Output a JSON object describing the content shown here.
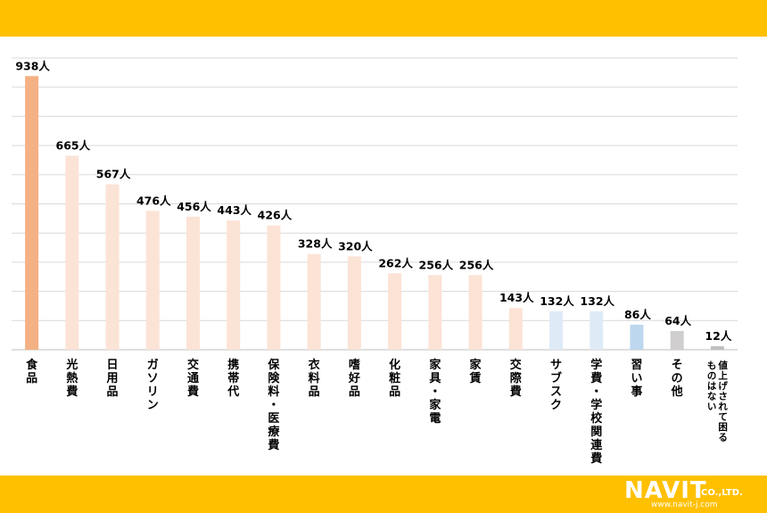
{
  "brand": {
    "band_color": "#FFC000",
    "logo_text": "NAVIT",
    "logo_suffix": "CO.,LTD.",
    "logo_url": "www.navit-j.com"
  },
  "chart_data": {
    "type": "bar",
    "unit": "人",
    "categories": [
      "食品",
      "光熱費",
      "日用品",
      "ガソリン",
      "交通費",
      "携帯代",
      "保険料・医療費",
      "衣料品",
      "嗜好品",
      "化粧品",
      "家具・家電",
      "家賃",
      "交際費",
      "サブスク",
      "学費・学校関連費",
      "習い事",
      "その他",
      "値上げされて困るものはない"
    ],
    "values": [
      938,
      665,
      567,
      476,
      456,
      443,
      426,
      328,
      320,
      262,
      256,
      256,
      143,
      132,
      132,
      86,
      64,
      12
    ],
    "colors": [
      "#F4B183",
      "#FBE3D6",
      "#FBE3D6",
      "#FBE3D6",
      "#FBE3D6",
      "#FBE3D6",
      "#FBE3D6",
      "#FBE3D6",
      "#FBE3D6",
      "#FBE3D6",
      "#FBE3D6",
      "#FBE3D6",
      "#FBE3D6",
      "#DEEBF7",
      "#DEEBF7",
      "#BDD7EE",
      "#D0CECE",
      "#BFBFBF"
    ],
    "ylim": [
      0,
      1000
    ],
    "grid": true,
    "legend": "none"
  }
}
